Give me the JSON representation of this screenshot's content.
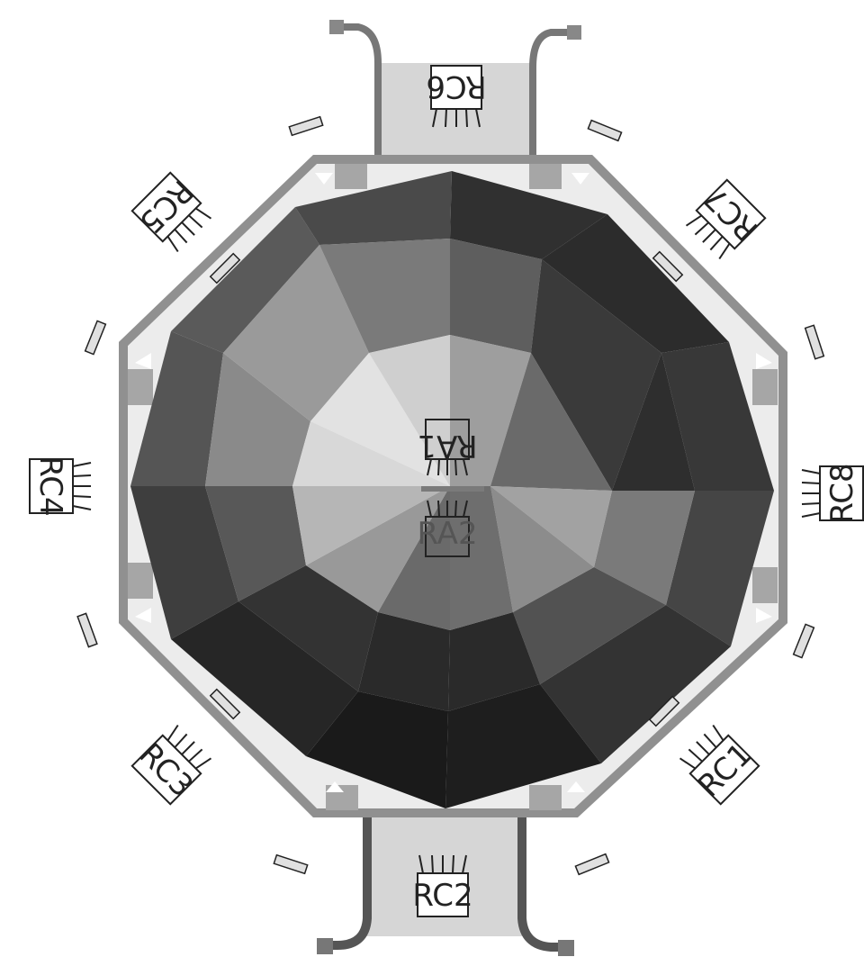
{
  "labels": {
    "rc6": "RC6",
    "rc7": "RC7",
    "rc8": "RC8",
    "rc1": "RC1",
    "rc2": "RC2",
    "rc3": "RC3",
    "rc4": "RC4",
    "rc5": "RC5",
    "ra1": "RA1",
    "ra2": "RA2"
  }
}
